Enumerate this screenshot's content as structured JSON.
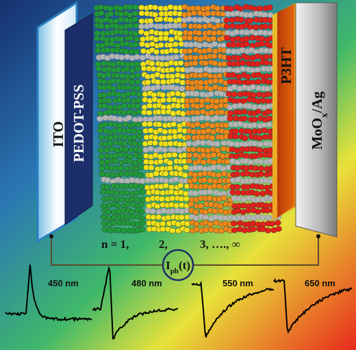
{
  "layers": {
    "ito": "ITO",
    "pedot": "PEDOT-PSS",
    "p3ht": "P3HT",
    "moox": {
      "base": "MoO",
      "sub": "x",
      "rest": "/Ag"
    }
  },
  "phases": [
    "n = 1,",
    "2,",
    "3, …., ∞"
  ],
  "current": {
    "base": "I",
    "sub": "ph",
    "rest": "(t)"
  },
  "wavelengths": [
    "450 nm",
    "480 nm",
    "550 nm",
    "650 nm"
  ]
}
